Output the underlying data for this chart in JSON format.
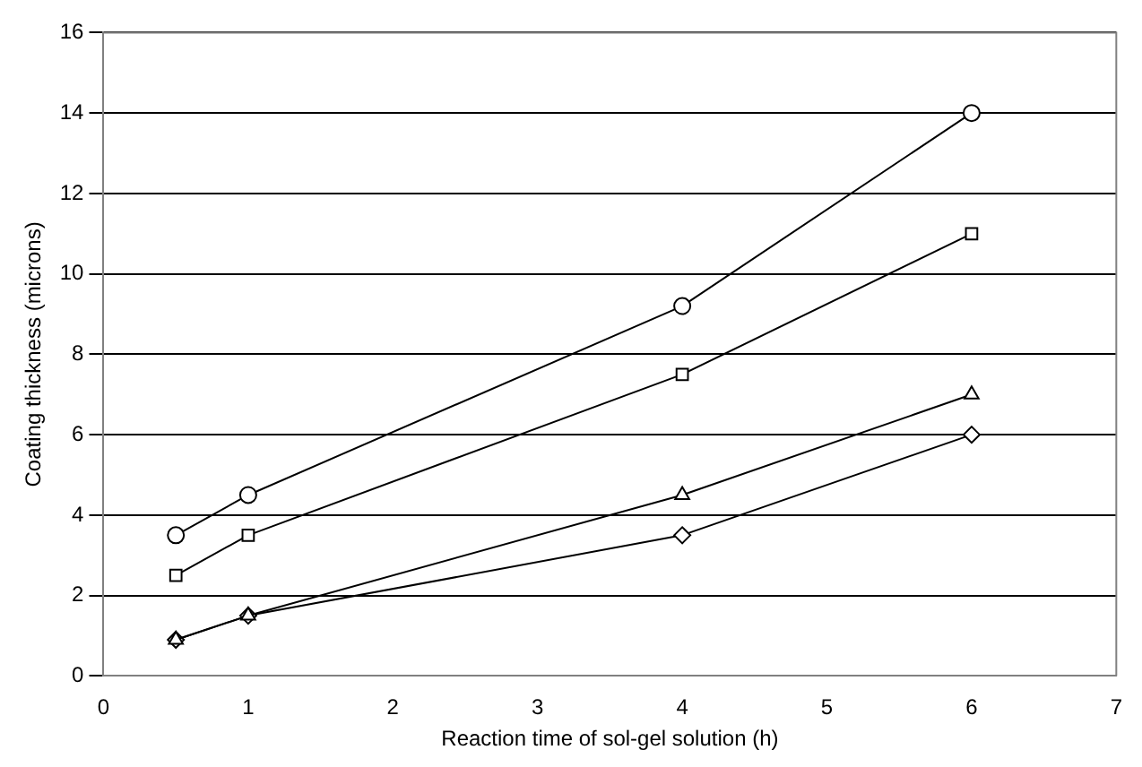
{
  "chart_data": {
    "type": "line",
    "xlabel": "Reaction time of sol-gel solution (h)",
    "ylabel": "Coating thickness (microns)",
    "xlim": [
      0,
      7
    ],
    "xticks": [
      0,
      1,
      2,
      3,
      4,
      5,
      6,
      7
    ],
    "ylim": [
      0,
      16
    ],
    "yticks": [
      0,
      2,
      4,
      6,
      8,
      10,
      12,
      14,
      16
    ],
    "grid": "y",
    "legend": false,
    "line_style": "solid",
    "series": [
      {
        "color": "#000000",
        "marker": "circle",
        "x": [
          0.5,
          1,
          4,
          6
        ],
        "values": [
          3.5,
          4.5,
          9.2,
          14
        ]
      },
      {
        "color": "#000000",
        "marker": "square",
        "x": [
          0.5,
          1,
          4,
          6
        ],
        "values": [
          2.5,
          3.5,
          7.5,
          11
        ]
      },
      {
        "color": "#000000",
        "marker": "triangle",
        "x": [
          0.5,
          1,
          4,
          6
        ],
        "values": [
          0.9,
          1.5,
          4.5,
          7
        ]
      },
      {
        "color": "#000000",
        "marker": "diamond",
        "x": [
          0.5,
          1,
          4,
          6
        ],
        "values": [
          0.9,
          1.5,
          3.5,
          6
        ]
      }
    ]
  }
}
